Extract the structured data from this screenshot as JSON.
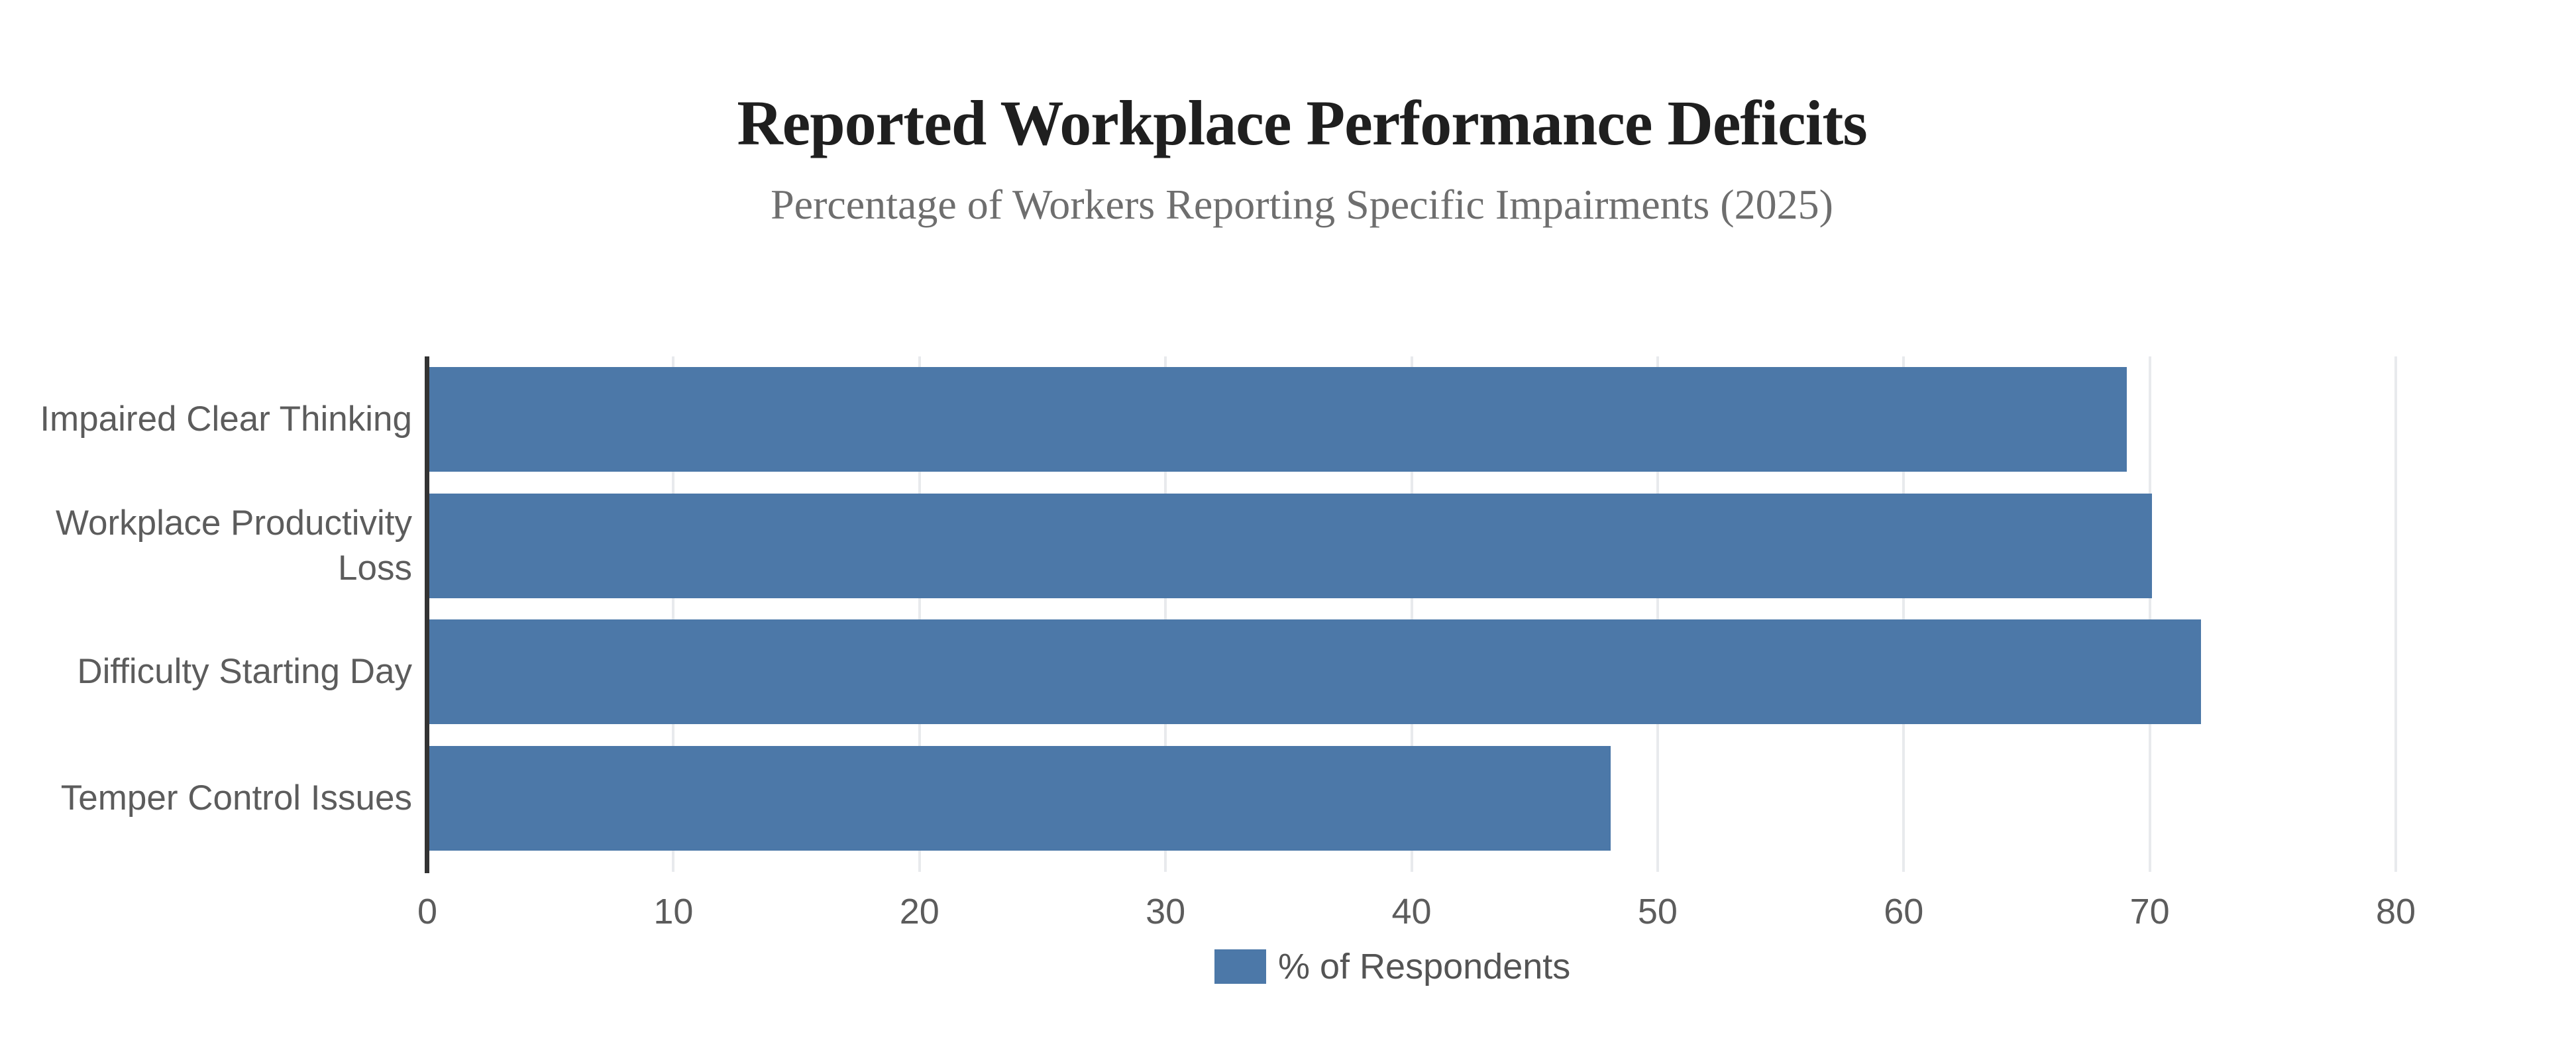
{
  "chart_data": {
    "type": "bar",
    "orientation": "horizontal",
    "title": "Reported Workplace Performance Deficits",
    "subtitle": "Percentage of Workers Reporting Specific Impairments (2025)",
    "categories": [
      "Impaired Clear Thinking",
      "Workplace Productivity Loss",
      "Difficulty Starting Day",
      "Temper Control Issues"
    ],
    "values": [
      69,
      70,
      72,
      48
    ],
    "series_name": "% of Respondents",
    "xlim": [
      0,
      80
    ],
    "xticks": [
      0,
      10,
      20,
      30,
      40,
      50,
      60,
      70,
      80
    ],
    "grid": true,
    "legend_position": "bottom",
    "bar_color": "#4C78A8",
    "gridline_color": "#e8eaed",
    "axis_line_color": "#333333",
    "title_color": "#1f1f1f",
    "subtitle_color": "#6e6e6e",
    "label_color": "#5c5c5c"
  }
}
